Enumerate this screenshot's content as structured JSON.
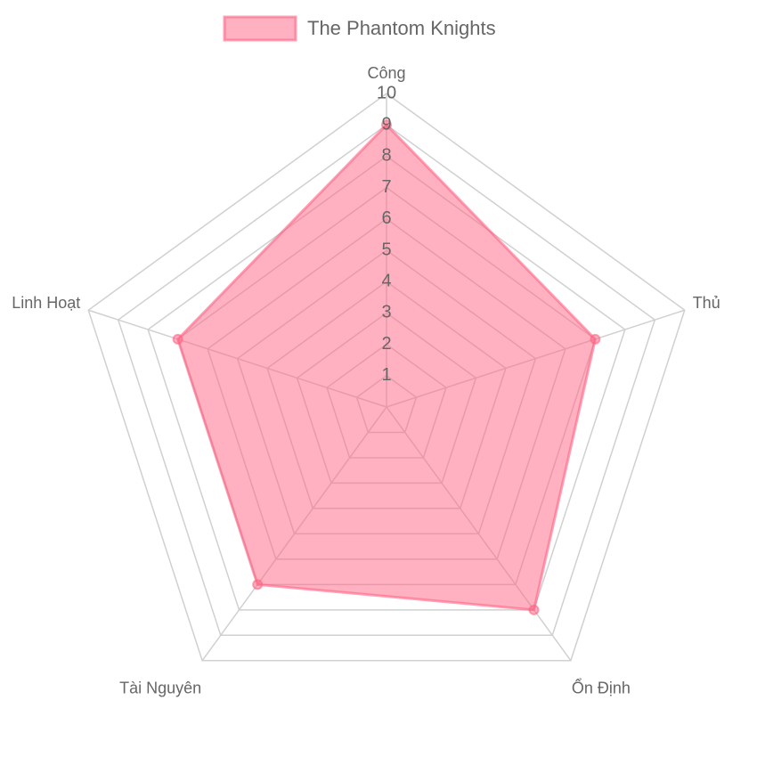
{
  "chart_data": {
    "type": "radar",
    "categories": [
      "Công",
      "Thủ",
      "Ổn Định",
      "Tài Nguyên",
      "Linh Hoạt"
    ],
    "series": [
      {
        "name": "The Phantom Knights",
        "color": "#ff6384",
        "values": [
          9,
          7,
          8,
          7,
          7
        ]
      }
    ],
    "ylim": [
      0,
      10
    ],
    "yticks": [
      1,
      2,
      3,
      4,
      5,
      6,
      7,
      8,
      9,
      10
    ],
    "grid": true,
    "legend": "top"
  }
}
